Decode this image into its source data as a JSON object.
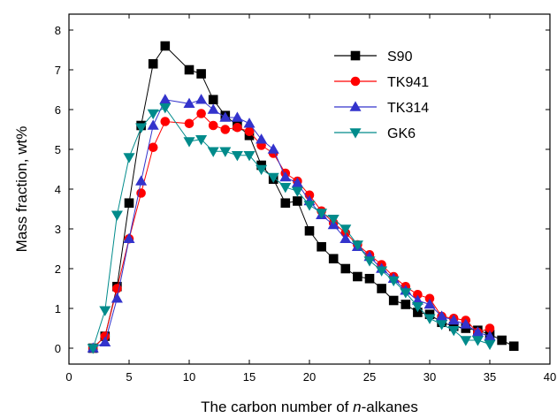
{
  "chart_data": {
    "type": "line",
    "title": "",
    "xlabel": {
      "prefix": "The carbon number of ",
      "italic": "n",
      "suffix": "-alkanes"
    },
    "ylabel": "Mass fraction, wt%",
    "xlim": [
      0,
      40
    ],
    "ylim": [
      -0.4,
      8.4
    ],
    "xticks": [
      0,
      5,
      10,
      15,
      20,
      25,
      30,
      35,
      40
    ],
    "yticks": [
      0,
      1,
      2,
      3,
      4,
      5,
      6,
      7,
      8
    ],
    "grid": false,
    "legend_position": "top-right",
    "series": [
      {
        "name": "S90",
        "color": "#000000",
        "marker": "square",
        "x": [
          2,
          3,
          4,
          5,
          6,
          7,
          8,
          10,
          11,
          12,
          13,
          14,
          15,
          16,
          17,
          18,
          19,
          20,
          21,
          22,
          23,
          24,
          25,
          26,
          27,
          28,
          29,
          30,
          31,
          32,
          33,
          34,
          35,
          36,
          37
        ],
        "y": [
          0.0,
          0.3,
          1.55,
          3.65,
          5.6,
          7.15,
          7.6,
          7.0,
          6.9,
          6.25,
          5.85,
          5.6,
          5.35,
          4.6,
          4.25,
          3.65,
          3.7,
          2.95,
          2.55,
          2.25,
          2.0,
          1.8,
          1.75,
          1.5,
          1.2,
          1.1,
          0.9,
          0.85,
          0.65,
          0.55,
          0.5,
          0.45,
          0.35,
          0.2,
          0.05
        ]
      },
      {
        "name": "TK941",
        "color": "#ff0000",
        "marker": "circle",
        "x": [
          2,
          3,
          4,
          5,
          6,
          7,
          8,
          10,
          11,
          12,
          13,
          14,
          15,
          16,
          17,
          18,
          19,
          20,
          21,
          22,
          23,
          24,
          25,
          26,
          27,
          28,
          29,
          30,
          31,
          32,
          33,
          34,
          35
        ],
        "y": [
          0.0,
          0.3,
          1.5,
          2.75,
          3.9,
          5.05,
          5.7,
          5.65,
          5.9,
          5.6,
          5.5,
          5.55,
          5.45,
          5.1,
          4.9,
          4.4,
          4.2,
          3.85,
          3.45,
          3.15,
          2.9,
          2.6,
          2.35,
          2.1,
          1.8,
          1.55,
          1.35,
          1.25,
          0.8,
          0.75,
          0.7,
          0.4,
          0.5
        ]
      },
      {
        "name": "TK314",
        "color": "#3333cc",
        "marker": "triangle-up",
        "x": [
          2,
          3,
          4,
          5,
          6,
          7,
          8,
          10,
          11,
          12,
          13,
          14,
          15,
          16,
          17,
          18,
          19,
          20,
          21,
          22,
          23,
          24,
          25,
          26,
          27,
          28,
          29,
          30,
          31,
          32,
          33,
          34,
          35
        ],
        "y": [
          0.0,
          0.15,
          1.25,
          2.75,
          4.2,
          5.6,
          6.25,
          6.15,
          6.25,
          6.0,
          5.8,
          5.8,
          5.65,
          5.25,
          5.0,
          4.3,
          4.15,
          3.7,
          3.35,
          3.1,
          2.75,
          2.55,
          2.3,
          2.0,
          1.75,
          1.45,
          1.2,
          1.1,
          0.8,
          0.7,
          0.6,
          0.4,
          0.3
        ]
      },
      {
        "name": "GK6",
        "color": "#008b8b",
        "marker": "triangle-down",
        "x": [
          2,
          3,
          4,
          5,
          6,
          7,
          8,
          10,
          11,
          12,
          13,
          14,
          15,
          16,
          17,
          18,
          19,
          20,
          21,
          22,
          23,
          24,
          25,
          26,
          27,
          28,
          29,
          30,
          31,
          32,
          33,
          34,
          35
        ],
        "y": [
          0.0,
          0.95,
          3.35,
          4.8,
          5.55,
          5.9,
          6.05,
          5.2,
          5.25,
          4.95,
          4.95,
          4.85,
          4.85,
          4.5,
          4.3,
          4.05,
          3.95,
          3.6,
          3.4,
          3.25,
          3.0,
          2.6,
          2.2,
          1.95,
          1.7,
          1.4,
          1.05,
          0.75,
          0.6,
          0.45,
          0.2,
          0.2,
          0.1
        ]
      }
    ]
  }
}
